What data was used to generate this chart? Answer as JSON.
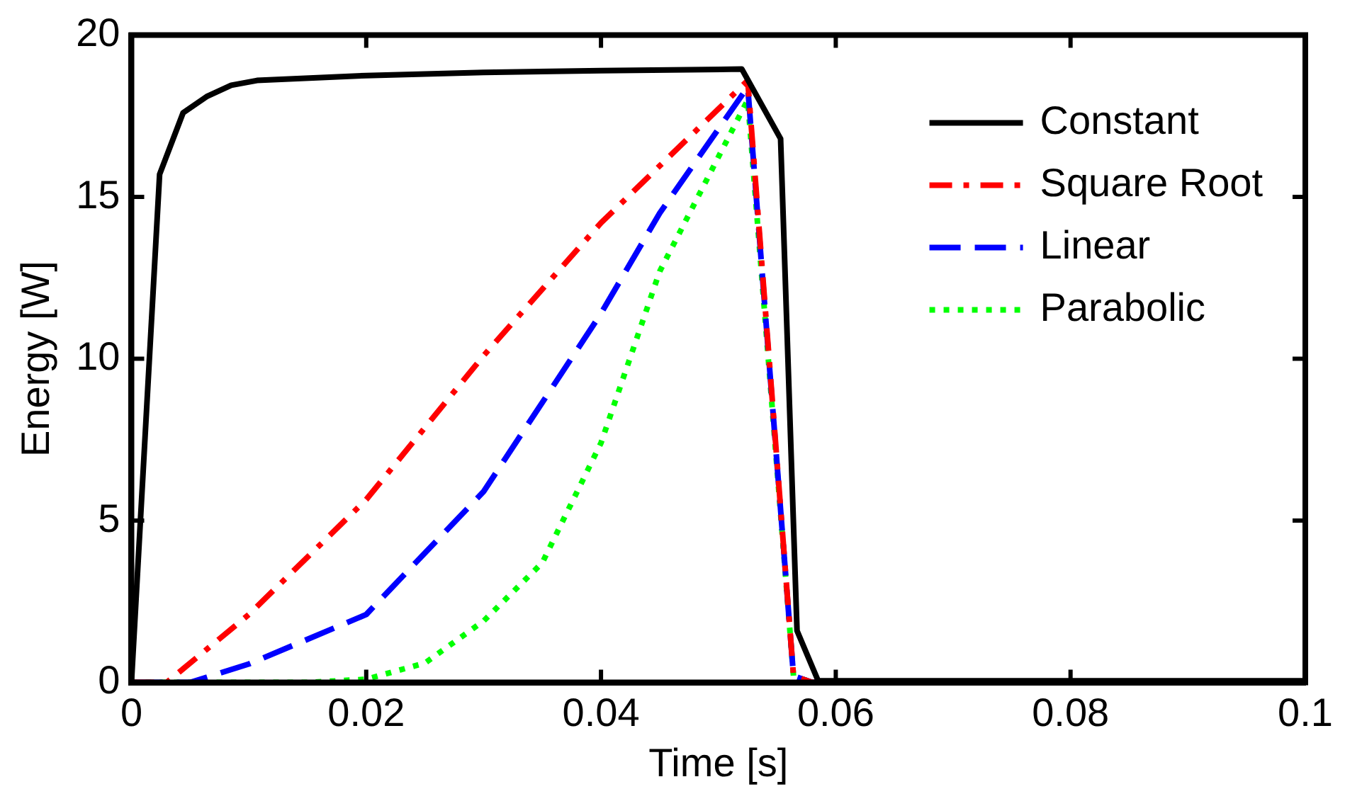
{
  "chart_data": {
    "type": "line",
    "xlabel": "Time [s]",
    "ylabel": "Energy [W]",
    "xlim": [
      0,
      0.1
    ],
    "ylim": [
      0,
      20
    ],
    "xticks": [
      0,
      0.02,
      0.04,
      0.06,
      0.08,
      0.1
    ],
    "yticks": [
      0,
      5,
      10,
      15,
      20
    ],
    "grid": false,
    "legend": "top right",
    "marker": "none",
    "series": [
      {
        "name": "Constant",
        "color": "#000000",
        "line_style": "solid",
        "x": [
          0,
          0.0024,
          0.0044,
          0.0064,
          0.0085,
          0.0107,
          0.02,
          0.03,
          0.04,
          0.052,
          0.0553,
          0.0567,
          0.0585,
          0.1
        ],
        "values": [
          0,
          15.7,
          17.6,
          18.1,
          18.45,
          18.6,
          18.75,
          18.85,
          18.9,
          18.95,
          16.8,
          1.6,
          0.05,
          0.05
        ]
      },
      {
        "name": "Square Root",
        "color": "#ff0000",
        "line_style": "dashdot",
        "x": [
          0,
          0.003,
          0.01,
          0.02,
          0.03,
          0.04,
          0.0525,
          0.0564,
          0.058,
          0.1
        ],
        "values": [
          0,
          0,
          2.1,
          5.65,
          10.1,
          14.2,
          18.6,
          0.2,
          0,
          0
        ]
      },
      {
        "name": "Linear",
        "color": "#0000ff",
        "line_style": "dashed",
        "x": [
          0,
          0.005,
          0.01,
          0.02,
          0.03,
          0.04,
          0.045,
          0.0525,
          0.0564,
          0.058,
          0.1
        ],
        "values": [
          0,
          0,
          0.57,
          2.1,
          5.9,
          11.4,
          14.5,
          18.4,
          0.2,
          0,
          0
        ]
      },
      {
        "name": "Parabolic",
        "color": "#00ff00",
        "line_style": "dotted",
        "x": [
          0,
          0.015,
          0.02,
          0.025,
          0.03,
          0.035,
          0.04,
          0.045,
          0.0525,
          0.0564,
          0.058,
          0.1
        ],
        "values": [
          0,
          0,
          0.1,
          0.6,
          1.9,
          3.7,
          7.4,
          12.7,
          18.0,
          0.2,
          0,
          0
        ]
      }
    ]
  }
}
